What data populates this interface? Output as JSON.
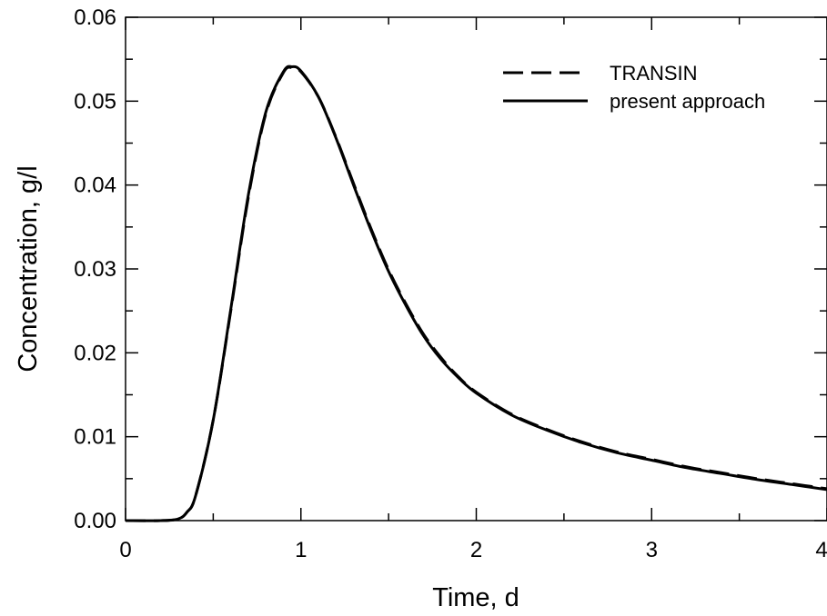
{
  "chart_data": {
    "type": "line",
    "title": "",
    "xlabel": "Time, d",
    "ylabel": "Concentration, g/l",
    "xlim": [
      0,
      4
    ],
    "ylim": [
      0,
      0.06
    ],
    "x_ticks": [
      "0",
      "1",
      "2",
      "3",
      "4"
    ],
    "y_ticks": [
      "0.00",
      "0.01",
      "0.02",
      "0.03",
      "0.04",
      "0.05",
      "0.06"
    ],
    "grid": false,
    "legend_position": "top-right",
    "series": [
      {
        "name": "TRANSIN",
        "style": "dashed",
        "color": "#000000",
        "x": [
          0,
          0.2,
          0.3,
          0.35,
          0.4,
          0.5,
          0.6,
          0.7,
          0.8,
          0.9,
          0.95,
          1.0,
          1.1,
          1.2,
          1.3,
          1.4,
          1.5,
          1.6,
          1.7,
          1.8,
          1.9,
          2.0,
          2.2,
          2.4,
          2.6,
          2.8,
          3.0,
          3.2,
          3.4,
          3.6,
          3.8,
          4.0
        ],
        "y": [
          0,
          0,
          0.0002,
          0.001,
          0.003,
          0.012,
          0.025,
          0.0385,
          0.0485,
          0.0534,
          0.054,
          0.0535,
          0.0505,
          0.0457,
          0.0402,
          0.0348,
          0.0299,
          0.0258,
          0.0222,
          0.0194,
          0.0171,
          0.0153,
          0.0127,
          0.0109,
          0.0094,
          0.0082,
          0.0073,
          0.0064,
          0.0057,
          0.005,
          0.0044,
          0.0038
        ]
      },
      {
        "name": "present approach",
        "style": "solid",
        "color": "#000000",
        "x": [
          0,
          0.2,
          0.3,
          0.35,
          0.4,
          0.5,
          0.6,
          0.7,
          0.8,
          0.9,
          0.95,
          1.0,
          1.1,
          1.2,
          1.3,
          1.4,
          1.5,
          1.6,
          1.7,
          1.8,
          1.9,
          2.0,
          2.2,
          2.4,
          2.6,
          2.8,
          3.0,
          3.2,
          3.4,
          3.6,
          3.8,
          4.0
        ],
        "y": [
          0,
          0,
          0.0002,
          0.001,
          0.003,
          0.012,
          0.0252,
          0.0388,
          0.0487,
          0.0535,
          0.0541,
          0.0536,
          0.0505,
          0.0456,
          0.04,
          0.0346,
          0.0297,
          0.0256,
          0.022,
          0.0192,
          0.017,
          0.0152,
          0.0126,
          0.0108,
          0.0093,
          0.0081,
          0.0072,
          0.0063,
          0.0056,
          0.0049,
          0.0043,
          0.0037
        ]
      }
    ]
  }
}
